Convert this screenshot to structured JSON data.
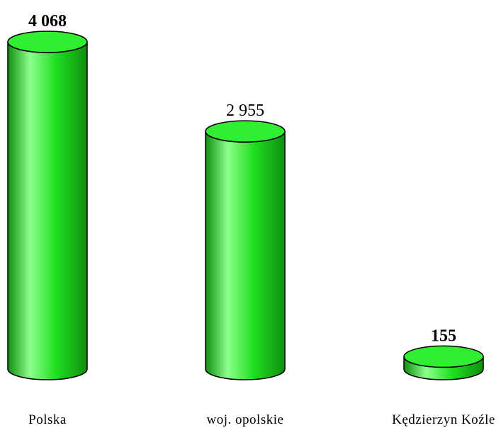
{
  "chart_data": {
    "type": "bar",
    "style": "3d-cylinder",
    "title": "",
    "xlabel": "",
    "ylabel": "",
    "categories": [
      "Polska",
      "woj. opolskie",
      "Kędzierzyn Koźle"
    ],
    "values": [
      4068,
      2955,
      155
    ],
    "value_labels": [
      "4 068",
      "2 955",
      "155"
    ],
    "ylim": [
      0,
      4068
    ],
    "grid": false,
    "legend": "none",
    "colors": {
      "bar_body": "#21e021",
      "bar_highlight": "#8dff8d",
      "bar_shadow": "#0f8f0f",
      "bar_top": "#32ee32",
      "outline": "#000000"
    }
  }
}
